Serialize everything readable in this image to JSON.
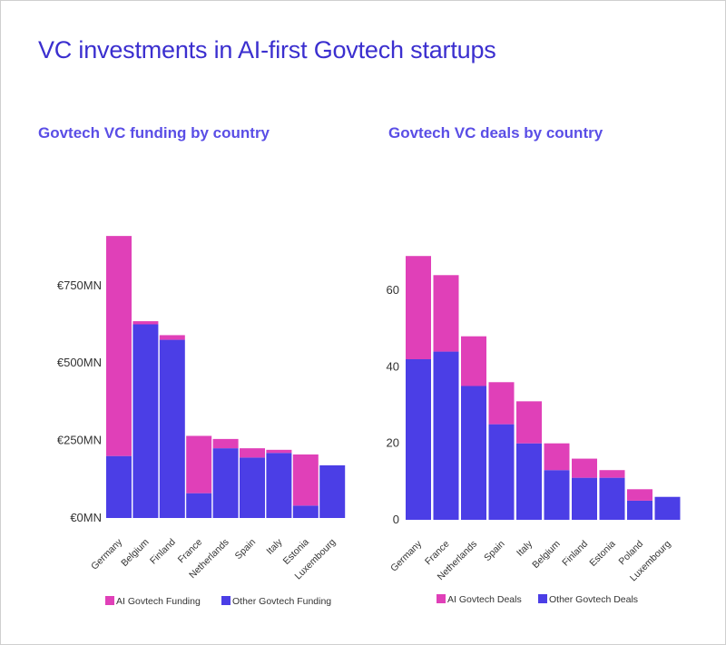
{
  "title": "VC investments in AI-first Govtech startups",
  "colors": {
    "ai": "#e040b8",
    "other": "#4b3ee6",
    "title": "#3b2fcf",
    "subtitle": "#5a4ee6"
  },
  "chart_data": [
    {
      "type": "bar",
      "stacked": true,
      "title": "Govtech VC funding by country",
      "xlabel": "",
      "ylabel": "",
      "ylim": [
        0,
        925
      ],
      "yticks": [
        0,
        250,
        500,
        750
      ],
      "ytick_labels": [
        "€0MN",
        "€250MN",
        "€500MN",
        "€750MN"
      ],
      "categories": [
        "Germany",
        "Belgium",
        "Finland",
        "France",
        "Netherlands",
        "Spain",
        "Italy",
        "Estonia",
        "Luxembourg"
      ],
      "series": [
        {
          "name": "Other Govtech Funding",
          "color": "#4b3ee6",
          "values": [
            200,
            625,
            575,
            80,
            225,
            195,
            210,
            40,
            170
          ]
        },
        {
          "name": "AI Govtech Funding",
          "color": "#e040b8",
          "values": [
            710,
            10,
            15,
            185,
            30,
            30,
            10,
            165,
            0
          ]
        }
      ],
      "legend": "bottom",
      "grid": false
    },
    {
      "type": "bar",
      "stacked": true,
      "title": "Govtech VC deals by country",
      "xlabel": "",
      "ylabel": "",
      "ylim": [
        0,
        70
      ],
      "yticks": [
        0,
        20,
        40,
        60
      ],
      "ytick_labels": [
        "0",
        "20",
        "40",
        "60"
      ],
      "categories": [
        "Germany",
        "France",
        "Netherlands",
        "Spain",
        "Italy",
        "Belgium",
        "Finland",
        "Estonia",
        "Poland",
        "Luxembourg"
      ],
      "series": [
        {
          "name": "Other Govtech Deals",
          "color": "#4b3ee6",
          "values": [
            42,
            44,
            35,
            25,
            20,
            13,
            11,
            11,
            5,
            6
          ]
        },
        {
          "name": "AI Govtech Deals",
          "color": "#e040b8",
          "values": [
            27,
            20,
            13,
            11,
            11,
            7,
            5,
            2,
            3,
            0
          ]
        }
      ],
      "legend": "bottom",
      "grid": false
    }
  ]
}
